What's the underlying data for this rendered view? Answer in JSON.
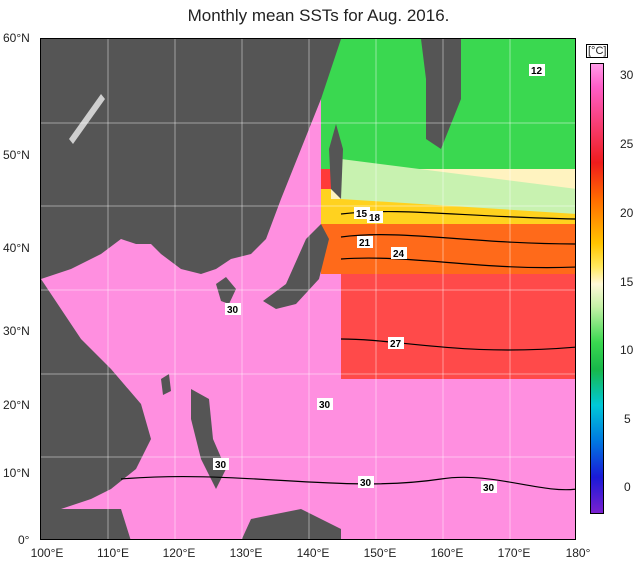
{
  "title": "Monthly mean SSTs for Aug. 2016.",
  "y_labels": [
    "60°N",
    "50°N",
    "40°N",
    "30°N",
    "20°N",
    "10°N",
    "0°"
  ],
  "x_labels": [
    "100°E",
    "110°E",
    "120°E",
    "130°E",
    "140°E",
    "150°E",
    "160°E",
    "170°E",
    "180°"
  ],
  "colorbar": {
    "unit": "[°C]",
    "ticks": [
      "30",
      "25",
      "20",
      "15",
      "10",
      "5",
      "0"
    ]
  },
  "contour_labels": [
    "12",
    "15",
    "18",
    "21",
    "24",
    "27",
    "30",
    "30",
    "30",
    "30",
    "30"
  ],
  "colors": {
    "land": "#555555",
    "warm_pink": "#ff8fe0",
    "red": "#ff3a3a",
    "orange": "#ff7a1a",
    "yellow": "#ffd21f",
    "green": "#3ad850"
  }
}
